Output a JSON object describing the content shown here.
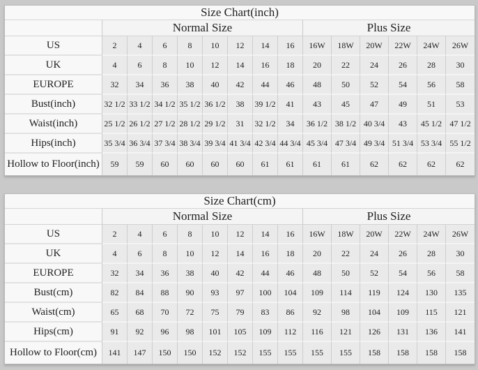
{
  "tables": [
    {
      "title": "Size Chart(inch)",
      "groups": [
        {
          "label": "Normal Size",
          "span": 8
        },
        {
          "label": "Plus Size",
          "span": 6
        }
      ],
      "rows": [
        {
          "label": "US",
          "values": [
            "2",
            "4",
            "6",
            "8",
            "10",
            "12",
            "14",
            "16",
            "16W",
            "18W",
            "20W",
            "22W",
            "24W",
            "26W"
          ]
        },
        {
          "label": "UK",
          "values": [
            "4",
            "6",
            "8",
            "10",
            "12",
            "14",
            "16",
            "18",
            "20",
            "22",
            "24",
            "26",
            "28",
            "30"
          ]
        },
        {
          "label": "EUROPE",
          "values": [
            "32",
            "34",
            "36",
            "38",
            "40",
            "42",
            "44",
            "46",
            "48",
            "50",
            "52",
            "54",
            "56",
            "58"
          ]
        },
        {
          "label": "Bust(inch)",
          "values": [
            "32 1/2",
            "33 1/2",
            "34 1/2",
            "35 1/2",
            "36 1/2",
            "38",
            "39 1/2",
            "41",
            "43",
            "45",
            "47",
            "49",
            "51",
            "53"
          ]
        },
        {
          "label": "Waist(inch)",
          "values": [
            "25 1/2",
            "26 1/2",
            "27 1/2",
            "28 1/2",
            "29 1/2",
            "31",
            "32 1/2",
            "34",
            "36 1/2",
            "38 1/2",
            "40 3/4",
            "43",
            "45 1/2",
            "47 1/2"
          ]
        },
        {
          "label": "Hips(inch)",
          "values": [
            "35 3/4",
            "36 3/4",
            "37 3/4",
            "38 3/4",
            "39 3/4",
            "41 3/4",
            "42 3/4",
            "44 3/4",
            "45 3/4",
            "47 3/4",
            "49 3/4",
            "51 3/4",
            "53 3/4",
            "55 1/2"
          ]
        },
        {
          "label": "Hollow to Floor(inch)",
          "values": [
            "59",
            "59",
            "60",
            "60",
            "60",
            "60",
            "61",
            "61",
            "61",
            "61",
            "62",
            "62",
            "62",
            "62"
          ]
        }
      ]
    },
    {
      "title": "Size Chart(cm)",
      "groups": [
        {
          "label": "Normal Size",
          "span": 8
        },
        {
          "label": "Plus Size",
          "span": 6
        }
      ],
      "rows": [
        {
          "label": "US",
          "values": [
            "2",
            "4",
            "6",
            "8",
            "10",
            "12",
            "14",
            "16",
            "16W",
            "18W",
            "20W",
            "22W",
            "24W",
            "26W"
          ]
        },
        {
          "label": "UK",
          "values": [
            "4",
            "6",
            "8",
            "10",
            "12",
            "14",
            "16",
            "18",
            "20",
            "22",
            "24",
            "26",
            "28",
            "30"
          ]
        },
        {
          "label": "EUROPE",
          "values": [
            "32",
            "34",
            "36",
            "38",
            "40",
            "42",
            "44",
            "46",
            "48",
            "50",
            "52",
            "54",
            "56",
            "58"
          ]
        },
        {
          "label": "Bust(cm)",
          "values": [
            "82",
            "84",
            "88",
            "90",
            "93",
            "97",
            "100",
            "104",
            "109",
            "114",
            "119",
            "124",
            "130",
            "135"
          ]
        },
        {
          "label": "Waist(cm)",
          "values": [
            "65",
            "68",
            "70",
            "72",
            "75",
            "79",
            "83",
            "86",
            "92",
            "98",
            "104",
            "109",
            "115",
            "121"
          ]
        },
        {
          "label": "Hips(cm)",
          "values": [
            "91",
            "92",
            "96",
            "98",
            "101",
            "105",
            "109",
            "112",
            "116",
            "121",
            "126",
            "131",
            "136",
            "141"
          ]
        },
        {
          "label": "Hollow to Floor(cm)",
          "values": [
            "141",
            "147",
            "150",
            "150",
            "152",
            "152",
            "155",
            "155",
            "155",
            "155",
            "158",
            "158",
            "158",
            "158"
          ]
        }
      ]
    }
  ]
}
